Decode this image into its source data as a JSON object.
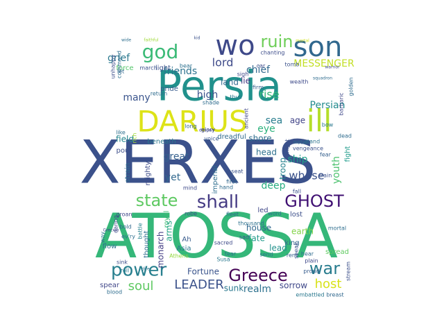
{
  "word_cloud": {
    "colormap": "viridis",
    "words": [
      {
        "text": "XERXES",
        "color": "#3b518b"
      },
      {
        "text": "ATOSSA",
        "color": "#35b779"
      },
      {
        "text": "Persia",
        "color": "#21918c"
      },
      {
        "text": "DARIUS",
        "color": "#dde318"
      },
      {
        "text": "son",
        "color": "#31688e"
      },
      {
        "text": "wo",
        "color": "#3e4989"
      },
      {
        "text": "ill",
        "color": "#b5de2b"
      },
      {
        "text": "god",
        "color": "#3aba76"
      },
      {
        "text": "ruin",
        "color": "#6ece58"
      },
      {
        "text": "Greece",
        "color": "#440154"
      },
      {
        "text": "GHOST",
        "color": "#3f0f72"
      },
      {
        "text": "state",
        "color": "#5ec962"
      },
      {
        "text": "shall",
        "color": "#443a83"
      },
      {
        "text": "power",
        "color": "#277f8e"
      },
      {
        "text": "war",
        "color": "#287c8e"
      },
      {
        "text": "soul",
        "color": "#5ec962"
      },
      {
        "text": "LEADER",
        "color": "#3b528b"
      },
      {
        "text": "host",
        "color": "#d8e219"
      },
      {
        "text": "lord",
        "color": "#3e4a89"
      },
      {
        "text": "friends",
        "color": "#2c728e"
      },
      {
        "text": "chief",
        "color": "#31688e"
      },
      {
        "text": "MESSENGER",
        "color": "#c2df23"
      },
      {
        "text": "grief",
        "color": "#2a788e"
      },
      {
        "text": "high",
        "color": "#3b528b"
      },
      {
        "text": "rise",
        "color": "#35b779"
      },
      {
        "text": "lie",
        "color": "#443983"
      },
      {
        "text": "land",
        "color": "#31688e"
      },
      {
        "text": "Persian",
        "color": "#228b8d"
      },
      {
        "text": "sea",
        "color": "#287d8e"
      },
      {
        "text": "age",
        "color": "#404387"
      },
      {
        "text": "eye",
        "color": "#2db27d"
      },
      {
        "text": "deep",
        "color": "#27ad81"
      },
      {
        "text": "whose",
        "color": "#3b528b"
      },
      {
        "text": "ship",
        "color": "#1f9e89"
      },
      {
        "text": "youth",
        "color": "#4ac16d"
      },
      {
        "text": "fight",
        "color": "#1e9b8a"
      },
      {
        "text": "troop",
        "color": "#26828e"
      },
      {
        "text": "many",
        "color": "#3a548c"
      },
      {
        "text": "field",
        "color": "#24868e"
      },
      {
        "text": "beneath",
        "color": "#2a778e"
      },
      {
        "text": "great",
        "color": "#35608d"
      },
      {
        "text": "yet",
        "color": "#31688e"
      },
      {
        "text": "mighty",
        "color": "#3e4c8a"
      },
      {
        "text": "strain",
        "color": "#2e6f8e"
      },
      {
        "text": "imperial",
        "color": "#2e6e8e"
      },
      {
        "text": "royal",
        "color": "#3dbc74"
      },
      {
        "text": "led",
        "color": "#3f4788"
      },
      {
        "text": "monarch",
        "color": "#433e85"
      },
      {
        "text": "thought",
        "color": "#2f6c8e"
      },
      {
        "text": "arms",
        "color": "#21a585"
      },
      {
        "text": "fate",
        "color": "#1f9a8a"
      },
      {
        "text": "house",
        "color": "#31688e"
      },
      {
        "text": "lead",
        "color": "#21918c"
      },
      {
        "text": "earth",
        "color": "#84d44b"
      },
      {
        "text": "Ah",
        "color": "#375a8c"
      },
      {
        "text": "Asia",
        "color": "#2a768e"
      },
      {
        "text": "Fortune",
        "color": "#3a548c"
      },
      {
        "text": "sunk",
        "color": "#2a788e"
      },
      {
        "text": "realm",
        "color": "#2d718e"
      },
      {
        "text": "sorrow",
        "color": "#3f4889"
      },
      {
        "text": "head",
        "color": "#2d708e"
      },
      {
        "text": "shore",
        "color": "#2e6d8e"
      },
      {
        "text": "pour",
        "color": "#3d4e8a"
      },
      {
        "text": "pride",
        "color": "#375b8d"
      },
      {
        "text": "light",
        "color": "#3b518b"
      },
      {
        "text": "force",
        "color": "#52c569"
      },
      {
        "text": "spear",
        "color": "#404688"
      },
      {
        "text": "flow",
        "color": "#2c728e"
      },
      {
        "text": "lost",
        "color": "#3c4f8a"
      },
      {
        "text": "spread",
        "color": "#60ca60"
      },
      {
        "text": "king",
        "color": "#31688e"
      },
      {
        "text": "dreadful",
        "color": "#2f6b8e"
      },
      {
        "text": "glory",
        "color": "#3f4889"
      },
      {
        "text": "voice",
        "color": "#38588c"
      },
      {
        "text": "thus",
        "color": "#2a788e"
      },
      {
        "text": "firm",
        "color": "#355f8d"
      },
      {
        "text": "wealth",
        "color": "#3e4a89"
      },
      {
        "text": "might",
        "color": "#3b518b"
      },
      {
        "text": "stand",
        "color": "#2c738e"
      },
      {
        "text": "notes",
        "color": "#2e6e8e"
      },
      {
        "text": "vengeance",
        "color": "#3b528b"
      },
      {
        "text": "chanting",
        "color": "#3d4d8a"
      },
      {
        "text": "return",
        "color": "#2f6c8e"
      },
      {
        "text": "sad",
        "color": "#38588c"
      },
      {
        "text": "send",
        "color": "#2a778e"
      },
      {
        "text": "rent",
        "color": "#355e8d"
      },
      {
        "text": "plain",
        "color": "#3f4889"
      },
      {
        "text": "word",
        "color": "#2c718e"
      },
      {
        "text": "robe",
        "color": "#3c4f8a"
      },
      {
        "text": "blood",
        "color": "#2e6d8e"
      },
      {
        "text": "battle",
        "color": "#26828e"
      },
      {
        "text": "groan",
        "color": "#3f4889"
      },
      {
        "text": "fleet",
        "color": "#2e6e8e"
      },
      {
        "text": "tomb",
        "color": "#3b528b"
      },
      {
        "text": "bear",
        "color": "#2d708e"
      },
      {
        "text": "proud",
        "color": "#365c8d"
      },
      {
        "text": "Susa",
        "color": "#2a788e"
      },
      {
        "text": "sacred",
        "color": "#3e4a89"
      },
      {
        "text": "first",
        "color": "#31688e"
      },
      {
        "text": "hand",
        "color": "#2f6b8e"
      },
      {
        "text": "seat",
        "color": "#3b528b"
      },
      {
        "text": "thousand",
        "color": "#2d718e"
      },
      {
        "text": "shade",
        "color": "#2f6c8e"
      },
      {
        "text": "ancient",
        "color": "#3f4889"
      },
      {
        "text": "dead",
        "color": "#2f6c8e"
      },
      {
        "text": "fear",
        "color": "#35608d"
      },
      {
        "text": "train",
        "color": "#3b518b"
      },
      {
        "text": "mortal",
        "color": "#2e6e8e"
      },
      {
        "text": "stream",
        "color": "#3c4f8a"
      },
      {
        "text": "embattled",
        "color": "#2a788e"
      },
      {
        "text": "breast",
        "color": "#31688e"
      },
      {
        "text": "barbaric",
        "color": "#3f4889"
      },
      {
        "text": "golden",
        "color": "#2f6c8e"
      },
      {
        "text": "unhappy",
        "color": "#3d4e8a"
      },
      {
        "text": "command",
        "color": "#2e6e8e"
      },
      {
        "text": "let",
        "color": "#31688e"
      },
      {
        "text": "march",
        "color": "#3b528b"
      },
      {
        "text": "rich",
        "color": "#a2da37"
      },
      {
        "text": "like",
        "color": "#2e6f8e"
      },
      {
        "text": "daring",
        "color": "#3f4889"
      },
      {
        "text": "bold",
        "color": "#31688e"
      },
      {
        "text": "Athens",
        "color": "#94d840"
      },
      {
        "text": "mind",
        "color": "#3e4a89"
      },
      {
        "text": "tear",
        "color": "#2c728e"
      },
      {
        "text": "way",
        "color": "#2c738e"
      },
      {
        "text": "speak",
        "color": "#3b528b"
      },
      {
        "text": "hear",
        "color": "#2f6b8e"
      },
      {
        "text": "bow",
        "color": "#2a788e"
      },
      {
        "text": "car",
        "color": "#3e4a89"
      },
      {
        "text": "sigh",
        "color": "#3f4889"
      },
      {
        "text": "long",
        "color": "#31688e"
      },
      {
        "text": "fall",
        "color": "#3b518b"
      },
      {
        "text": "ev'ry",
        "color": "#2e6e8e"
      },
      {
        "text": "sink",
        "color": "#3d4e8a"
      },
      {
        "text": "roll",
        "color": "#2a788e"
      },
      {
        "text": "Grecian",
        "color": "#3f4889"
      },
      {
        "text": "dire",
        "color": "#2c738e"
      },
      {
        "text": "faithful",
        "color": "#a0da39"
      },
      {
        "text": "wide",
        "color": "#2e6e8e"
      },
      {
        "text": "kid",
        "color": "#3b528b"
      },
      {
        "text": "mortal",
        "color": "#d0e11c"
      },
      {
        "text": "warrior",
        "color": "#3e4a89"
      },
      {
        "text": "squadron",
        "color": "#2f6c8e"
      },
      {
        "text": "despair",
        "color": "#3f4889"
      }
    ]
  }
}
